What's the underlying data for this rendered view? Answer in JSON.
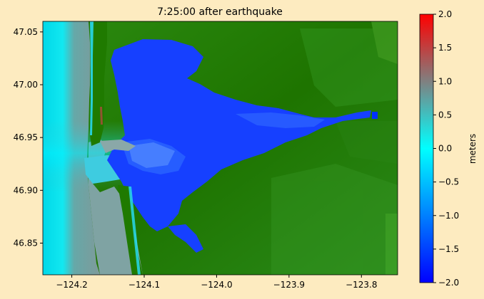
{
  "chart_data": {
    "type": "heatmap",
    "title": "7:25:00 after earthquake",
    "xlabel": "",
    "ylabel": "",
    "xlim": [
      -124.24,
      -123.75
    ],
    "ylim": [
      46.82,
      47.06
    ],
    "x_ticks": [
      -124.2,
      -124.1,
      -124.0,
      -123.9,
      -123.8
    ],
    "x_tick_labels": [
      "−124.2",
      "−124.1",
      "−124.0",
      "−123.9",
      "−123.8"
    ],
    "y_ticks": [
      46.85,
      46.9,
      46.95,
      47.0,
      47.05
    ],
    "y_tick_labels": [
      "46.85",
      "46.90",
      "46.95",
      "47.00",
      "47.05"
    ],
    "colorbar": {
      "label": "meters",
      "range": [
        -2.0,
        2.0
      ],
      "ticks": [
        2.0,
        1.5,
        1.0,
        0.5,
        0.0,
        -0.5,
        -1.0,
        -1.5,
        -2.0
      ],
      "tick_labels": [
        "2.0",
        "1.5",
        "1.0",
        "0.5",
        "0.0",
        "−0.5",
        "−1.0",
        "−1.5",
        "−2.0"
      ],
      "colors": [
        "#0000ff",
        "#00ffff",
        "#808080",
        "#ff0000"
      ]
    },
    "land_color": "#1f7a00",
    "grid": false
  }
}
